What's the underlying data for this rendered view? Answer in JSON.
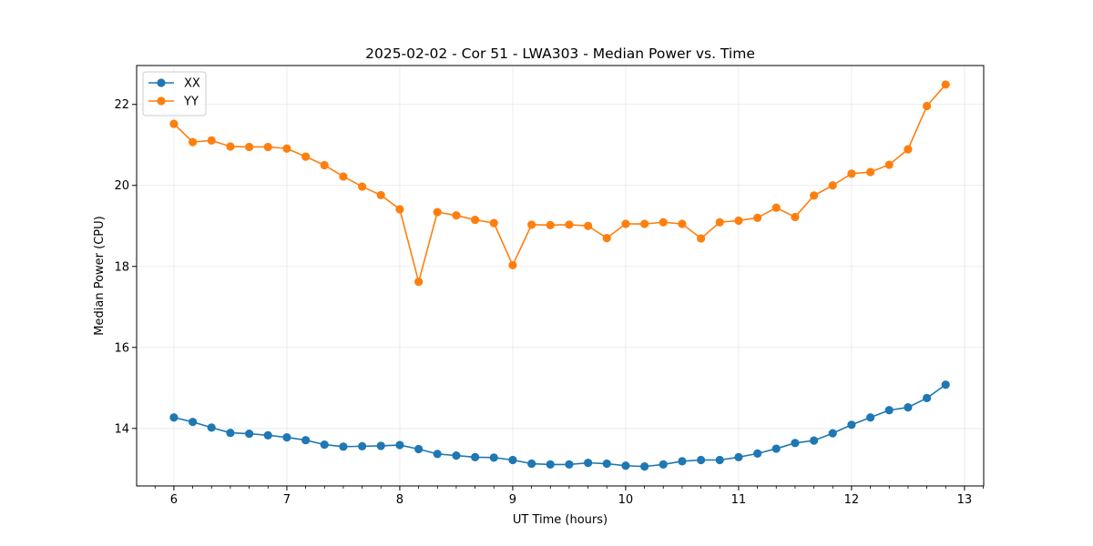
{
  "chart_data": {
    "type": "line",
    "title": "2025-02-02 - Cor 51 - LWA303 - Median Power vs. Time",
    "xlabel": "UT Time (hours)",
    "ylabel": "Median Power (CPU)",
    "xlim": [
      5.67,
      13.17
    ],
    "ylim": [
      12.58,
      22.96
    ],
    "xticks": [
      6,
      7,
      8,
      9,
      10,
      11,
      12,
      13
    ],
    "xtick_labels": [
      "6",
      "7",
      "8",
      "9",
      "10",
      "11",
      "12",
      "13"
    ],
    "yticks": [
      14,
      16,
      18,
      20,
      22
    ],
    "ytick_labels": [
      "14",
      "16",
      "18",
      "20",
      "22"
    ],
    "grid": true,
    "legend_position": "top-left",
    "x": [
      6.0,
      6.167,
      6.333,
      6.5,
      6.667,
      6.833,
      7.0,
      7.167,
      7.333,
      7.5,
      7.667,
      7.833,
      8.0,
      8.167,
      8.333,
      8.5,
      8.667,
      8.833,
      9.0,
      9.167,
      9.333,
      9.5,
      9.667,
      9.833,
      10.0,
      10.167,
      10.333,
      10.5,
      10.667,
      10.833,
      11.0,
      11.167,
      11.333,
      11.5,
      11.667,
      11.833,
      12.0,
      12.167,
      12.333,
      12.5,
      12.667,
      12.833
    ],
    "series": [
      {
        "name": "XX",
        "color": "#1f77b4",
        "values": [
          14.27,
          14.16,
          14.02,
          13.89,
          13.87,
          13.83,
          13.78,
          13.71,
          13.6,
          13.55,
          13.56,
          13.57,
          13.59,
          13.49,
          13.37,
          13.33,
          13.29,
          13.28,
          13.22,
          13.13,
          13.11,
          13.11,
          13.15,
          13.13,
          13.08,
          13.06,
          13.11,
          13.19,
          13.22,
          13.22,
          13.29,
          13.38,
          13.5,
          13.64,
          13.7,
          13.88,
          14.09,
          14.27,
          14.45,
          14.52,
          14.75,
          15.08
        ]
      },
      {
        "name": "YY",
        "color": "#ff7f0e",
        "values": [
          21.52,
          21.07,
          21.11,
          20.96,
          20.95,
          20.95,
          20.91,
          20.71,
          20.5,
          20.22,
          19.97,
          19.76,
          19.41,
          17.62,
          19.34,
          19.26,
          19.15,
          19.07,
          18.03,
          19.03,
          19.02,
          19.03,
          19.0,
          18.7,
          19.05,
          19.05,
          19.09,
          19.05,
          18.69,
          19.09,
          19.13,
          19.2,
          19.45,
          19.22,
          19.75,
          20.0,
          20.29,
          20.33,
          20.51,
          20.89,
          21.96,
          22.49
        ]
      }
    ]
  }
}
